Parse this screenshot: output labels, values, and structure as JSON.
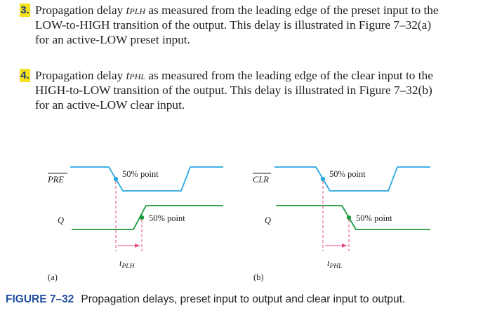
{
  "items": [
    {
      "number": "3.",
      "lines": [
        {
          "pre": "Propagation delay ",
          "sym": "t",
          "sub": "PLH",
          "post": " as measured from the leading edge of the preset input to the"
        },
        {
          "text": "LOW-to-HIGH transition of the output. This delay is illustrated in Figure 7–32(a)"
        },
        {
          "text": "for an active-LOW preset input."
        }
      ]
    },
    {
      "number": "4.",
      "lines": [
        {
          "pre": "Propagation delay ",
          "sym": "t",
          "sub": "PHL",
          "post": " as measured from the leading edge of the clear input to the"
        },
        {
          "text": "HIGH-to-LOW transition of the output. This delay is illustrated in Figure 7–32(b)"
        },
        {
          "text": "for an active-LOW clear input."
        }
      ]
    }
  ],
  "diagram_a": {
    "input_label": "PRE",
    "output_label": "Q",
    "point_label_top": "50% point",
    "point_label_bottom": "50% point",
    "delay_sym": "t",
    "delay_sub": "PLH",
    "panel_label": "(a)"
  },
  "diagram_b": {
    "input_label": "CLR",
    "output_label": "Q",
    "point_label_top": "50% point",
    "point_label_bottom": "50% point",
    "delay_sym": "t",
    "delay_sub": "PHL",
    "panel_label": "(b)"
  },
  "colors": {
    "input_wave": "#29a8e0",
    "output_wave": "#1b9a3b",
    "marker": "#e8458b",
    "figure_number": "#1e4f9e",
    "number_badge": "#f5e21c"
  },
  "caption": {
    "figure_number": "FIGURE 7–32",
    "text": "Propagation delays, preset input to output and clear input to output."
  }
}
